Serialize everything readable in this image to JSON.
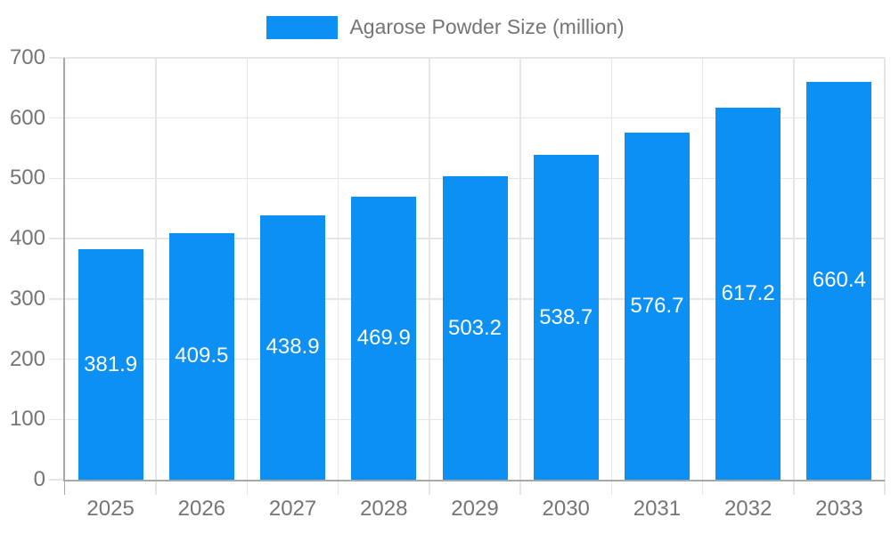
{
  "chart_data": {
    "type": "bar",
    "title": "",
    "legend": {
      "label": "Agarose Powder Size (million)",
      "position": "top"
    },
    "categories": [
      "2025",
      "2026",
      "2027",
      "2028",
      "2029",
      "2030",
      "2031",
      "2032",
      "2033"
    ],
    "values": [
      381.9,
      409.5,
      438.9,
      469.9,
      503.2,
      538.7,
      576.7,
      617.2,
      660.4
    ],
    "value_labels": [
      "381.9",
      "409.5",
      "438.9",
      "469.9",
      "503.2",
      "538.7",
      "576.7",
      "617.2",
      "660.4"
    ],
    "ylim": [
      0,
      700
    ],
    "yticks": [
      0,
      100,
      200,
      300,
      400,
      500,
      600,
      700
    ],
    "ytick_labels": [
      "0",
      "100",
      "200",
      "300",
      "400",
      "500",
      "600",
      "700"
    ],
    "grid": true,
    "colors": {
      "bar": "#0d90f3",
      "value_label": "#ffffff",
      "grid": "#e6e6e6",
      "axis": "#a8a8a8",
      "tick_text": "#757575",
      "legend_text": "#757575",
      "background": "#ffffff"
    }
  }
}
